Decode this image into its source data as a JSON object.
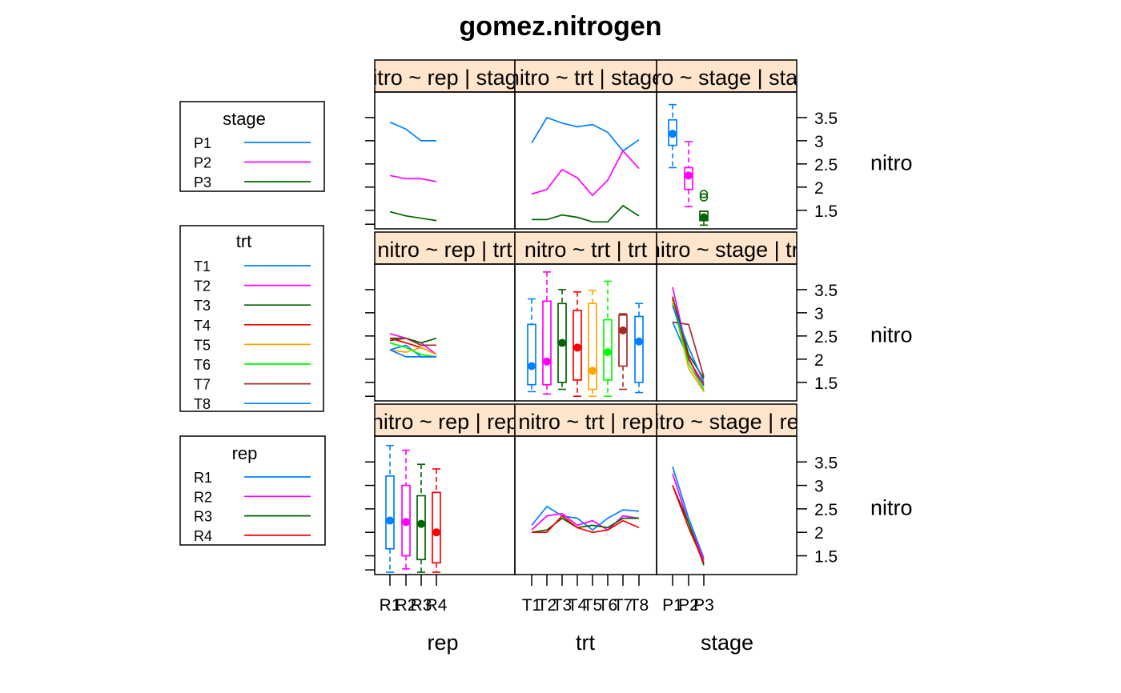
{
  "chart_data": {
    "type": "multi-panel-matrix",
    "title": "gomez.nitrogen",
    "x_axis_labels": [
      "rep",
      "trt",
      "stage"
    ],
    "y_axis_label": "nitro",
    "y_ticks": [
      "1.5",
      "2",
      "2.5",
      "3",
      "3.5"
    ],
    "ylim": [
      1.1,
      4.05
    ],
    "levels": {
      "rep": [
        "R1",
        "R2",
        "R3",
        "R4"
      ],
      "trt": [
        "T1",
        "T2",
        "T3",
        "T4",
        "T5",
        "T6",
        "T7",
        "T8"
      ],
      "stage": [
        "P1",
        "P2",
        "P3"
      ]
    },
    "strip_labels": [
      [
        "nitro ~ rep | stage",
        "nitro ~ trt | stage",
        "nitro ~ stage | stage"
      ],
      [
        "nitro ~ rep | trt",
        "nitro ~ trt | trt",
        "nitro ~ stage | trt"
      ],
      [
        "nitro ~ rep | rep",
        "nitro ~ trt | rep",
        "nitro ~ stage | rep"
      ]
    ],
    "legends": [
      {
        "title": "stage",
        "items": [
          "P1",
          "P2",
          "P3"
        ],
        "colors": [
          "#0080ff",
          "#ff00ff",
          "#006400"
        ]
      },
      {
        "title": "trt",
        "items": [
          "T1",
          "T2",
          "T3",
          "T4",
          "T5",
          "T6",
          "T7",
          "T8"
        ],
        "colors": [
          "#0080ff",
          "#ff00ff",
          "#006400",
          "#ff0000",
          "#ffa500",
          "#00ff00",
          "#a52a2a",
          "#0080ff"
        ]
      },
      {
        "title": "rep",
        "items": [
          "R1",
          "R2",
          "R3",
          "R4"
        ],
        "colors": [
          "#0080ff",
          "#ff00ff",
          "#006400",
          "#ff0000"
        ]
      }
    ],
    "panels": {
      "rep_by_stage": {
        "type": "line",
        "series": [
          {
            "name": "P1",
            "values": [
              3.4,
              3.25,
              3.0,
              3.0
            ]
          },
          {
            "name": "P2",
            "values": [
              2.25,
              2.18,
              2.18,
              2.12
            ]
          },
          {
            "name": "P3",
            "values": [
              1.47,
              1.38,
              1.33,
              1.28
            ]
          }
        ]
      },
      "trt_by_stage": {
        "type": "line",
        "series": [
          {
            "name": "P1",
            "values": [
              2.95,
              3.5,
              3.38,
              3.3,
              3.35,
              3.18,
              2.78,
              3.02
            ]
          },
          {
            "name": "P2",
            "values": [
              1.85,
              1.95,
              2.38,
              2.2,
              1.82,
              2.15,
              2.78,
              2.4
            ]
          },
          {
            "name": "P3",
            "values": [
              1.3,
              1.3,
              1.4,
              1.35,
              1.25,
              1.25,
              1.6,
              1.38
            ]
          }
        ]
      },
      "stage_by_stage": {
        "type": "box",
        "boxes": [
          {
            "name": "P1",
            "min": 2.42,
            "q1": 2.9,
            "median": 3.15,
            "q3": 3.45,
            "max": 3.78,
            "outliers": []
          },
          {
            "name": "P2",
            "min": 1.58,
            "q1": 1.95,
            "median": 2.25,
            "q3": 2.42,
            "max": 2.98,
            "outliers": []
          },
          {
            "name": "P3",
            "min": 1.18,
            "q1": 1.28,
            "median": 1.35,
            "q3": 1.48,
            "max": 1.48,
            "outliers": [
              1.78,
              1.85
            ]
          }
        ]
      },
      "rep_by_trt": {
        "type": "line",
        "series": [
          {
            "name": "T1",
            "values": [
              2.2,
              2.3,
              2.05,
              2.05
            ]
          },
          {
            "name": "T2",
            "values": [
              2.55,
              2.45,
              2.35,
              2.1
            ]
          },
          {
            "name": "T3",
            "values": [
              2.45,
              2.45,
              2.35,
              2.45
            ]
          },
          {
            "name": "T4",
            "values": [
              2.45,
              2.35,
              2.25,
              2.1
            ]
          },
          {
            "name": "T5",
            "values": [
              2.2,
              2.15,
              2.25,
              2.1
            ]
          },
          {
            "name": "T6",
            "values": [
              2.35,
              2.25,
              2.1,
              2.05
            ]
          },
          {
            "name": "T7",
            "values": [
              2.4,
              2.45,
              2.3,
              2.3
            ]
          },
          {
            "name": "T8",
            "values": [
              2.2,
              2.05,
              2.05,
              2.05
            ]
          }
        ]
      },
      "trt_by_trt": {
        "type": "box",
        "boxes": [
          {
            "name": "T1",
            "min": 1.3,
            "q1": 1.45,
            "median": 1.85,
            "q3": 2.75,
            "max": 3.3
          },
          {
            "name": "T2",
            "min": 1.25,
            "q1": 1.45,
            "median": 1.95,
            "q3": 3.25,
            "max": 3.88
          },
          {
            "name": "T3",
            "min": 1.35,
            "q1": 1.5,
            "median": 2.35,
            "q3": 3.2,
            "max": 3.5
          },
          {
            "name": "T4",
            "min": 1.2,
            "q1": 1.55,
            "median": 2.25,
            "q3": 3.05,
            "max": 3.45
          },
          {
            "name": "T5",
            "min": 1.2,
            "q1": 1.35,
            "median": 1.75,
            "q3": 3.2,
            "max": 3.48
          },
          {
            "name": "T6",
            "min": 1.2,
            "q1": 1.55,
            "median": 2.15,
            "q3": 2.85,
            "max": 3.68
          },
          {
            "name": "T7",
            "min": 1.35,
            "q1": 1.85,
            "median": 2.62,
            "q3": 2.95,
            "max": 2.98
          },
          {
            "name": "T8",
            "min": 1.28,
            "q1": 1.5,
            "median": 2.38,
            "q3": 2.92,
            "max": 3.2
          }
        ]
      },
      "stage_by_trt": {
        "type": "line",
        "series": [
          {
            "name": "T1",
            "values": [
              2.8,
              2.0,
              1.42
            ]
          },
          {
            "name": "T2",
            "values": [
              3.55,
              2.05,
              1.3
            ]
          },
          {
            "name": "T3",
            "values": [
              3.35,
              2.1,
              1.58
            ]
          },
          {
            "name": "T4",
            "values": [
              3.3,
              2.0,
              1.45
            ]
          },
          {
            "name": "T5",
            "values": [
              3.25,
              1.8,
              1.3
            ]
          },
          {
            "name": "T6",
            "values": [
              3.2,
              1.9,
              1.35
            ]
          },
          {
            "name": "T7",
            "values": [
              2.8,
              2.75,
              1.62
            ]
          },
          {
            "name": "T8",
            "values": [
              3.15,
              2.25,
              1.5
            ]
          }
        ]
      },
      "rep_by_rep": {
        "type": "box",
        "boxes": [
          {
            "name": "R1",
            "min": 1.15,
            "q1": 1.65,
            "median": 2.25,
            "q3": 3.2,
            "max": 3.85
          },
          {
            "name": "R2",
            "min": 1.22,
            "q1": 1.5,
            "median": 2.22,
            "q3": 3.0,
            "max": 3.75
          },
          {
            "name": "R3",
            "min": 1.15,
            "q1": 1.42,
            "median": 2.18,
            "q3": 2.78,
            "max": 3.45
          },
          {
            "name": "R4",
            "min": 1.15,
            "q1": 1.35,
            "median": 2.0,
            "q3": 2.85,
            "max": 3.35
          }
        ]
      },
      "trt_by_rep": {
        "type": "line",
        "series": [
          {
            "name": "R1",
            "values": [
              2.15,
              2.55,
              2.35,
              2.3,
              2.05,
              2.3,
              2.48,
              2.45
            ]
          },
          {
            "name": "R2",
            "values": [
              2.05,
              2.35,
              2.4,
              2.15,
              2.25,
              2.05,
              2.35,
              2.3
            ]
          },
          {
            "name": "R3",
            "values": [
              2.0,
              2.05,
              2.3,
              2.1,
              2.15,
              2.1,
              2.3,
              2.3
            ]
          },
          {
            "name": "R4",
            "values": [
              2.0,
              2.0,
              2.35,
              2.1,
              2.0,
              2.05,
              2.25,
              2.1
            ]
          }
        ]
      },
      "stage_by_rep": {
        "type": "line",
        "series": [
          {
            "name": "R1",
            "values": [
              3.4,
              2.3,
              1.45
            ]
          },
          {
            "name": "R2",
            "values": [
              3.25,
              2.2,
              1.4
            ]
          },
          {
            "name": "R3",
            "values": [
              3.0,
              2.2,
              1.3
            ]
          },
          {
            "name": "R4",
            "values": [
              3.0,
              2.1,
              1.35
            ]
          }
        ]
      }
    }
  }
}
